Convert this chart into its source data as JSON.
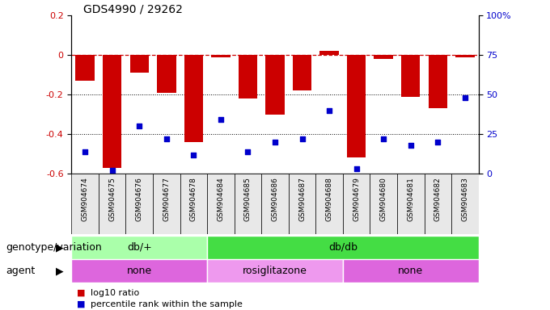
{
  "title": "GDS4990 / 29262",
  "samples": [
    "GSM904674",
    "GSM904675",
    "GSM904676",
    "GSM904677",
    "GSM904678",
    "GSM904684",
    "GSM904685",
    "GSM904686",
    "GSM904687",
    "GSM904688",
    "GSM904679",
    "GSM904680",
    "GSM904681",
    "GSM904682",
    "GSM904683"
  ],
  "log10_ratio": [
    -0.13,
    -0.57,
    -0.09,
    -0.19,
    -0.44,
    -0.01,
    -0.22,
    -0.3,
    -0.18,
    0.02,
    -0.52,
    -0.02,
    -0.21,
    -0.27,
    -0.01
  ],
  "percentile": [
    14,
    2,
    30,
    22,
    12,
    34,
    14,
    20,
    22,
    40,
    3,
    22,
    18,
    20,
    48
  ],
  "ylim_left": [
    -0.6,
    0.2
  ],
  "ylim_right": [
    0,
    100
  ],
  "yticks_left": [
    -0.6,
    -0.4,
    -0.2,
    0.0,
    0.2
  ],
  "yticks_right": [
    0,
    25,
    50,
    75,
    100
  ],
  "bar_color": "#cc0000",
  "dot_color": "#0000cc",
  "hline_color": "#cc0000",
  "grid_color": "#000000",
  "genotype_groups": [
    {
      "label": "db/+",
      "start": 0,
      "end": 5,
      "color": "#aaffaa"
    },
    {
      "label": "db/db",
      "start": 5,
      "end": 15,
      "color": "#44dd44"
    }
  ],
  "agent_groups": [
    {
      "label": "none",
      "start": 0,
      "end": 5
    },
    {
      "label": "rosiglitazone",
      "start": 5,
      "end": 10
    },
    {
      "label": "none",
      "start": 10,
      "end": 15
    }
  ],
  "agent_color_left": "#dd66dd",
  "agent_color_mid": "#ee99ee",
  "agent_color_right": "#dd66dd",
  "legend_items": [
    {
      "label": "log10 ratio",
      "color": "#cc0000"
    },
    {
      "label": "percentile rank within the sample",
      "color": "#0000cc"
    }
  ],
  "genotype_label": "genotype/variation",
  "agent_label": "agent",
  "title_fontsize": 10,
  "tick_fontsize": 8,
  "label_fontsize": 9,
  "sample_fontsize": 6.5,
  "legend_fontsize": 8
}
